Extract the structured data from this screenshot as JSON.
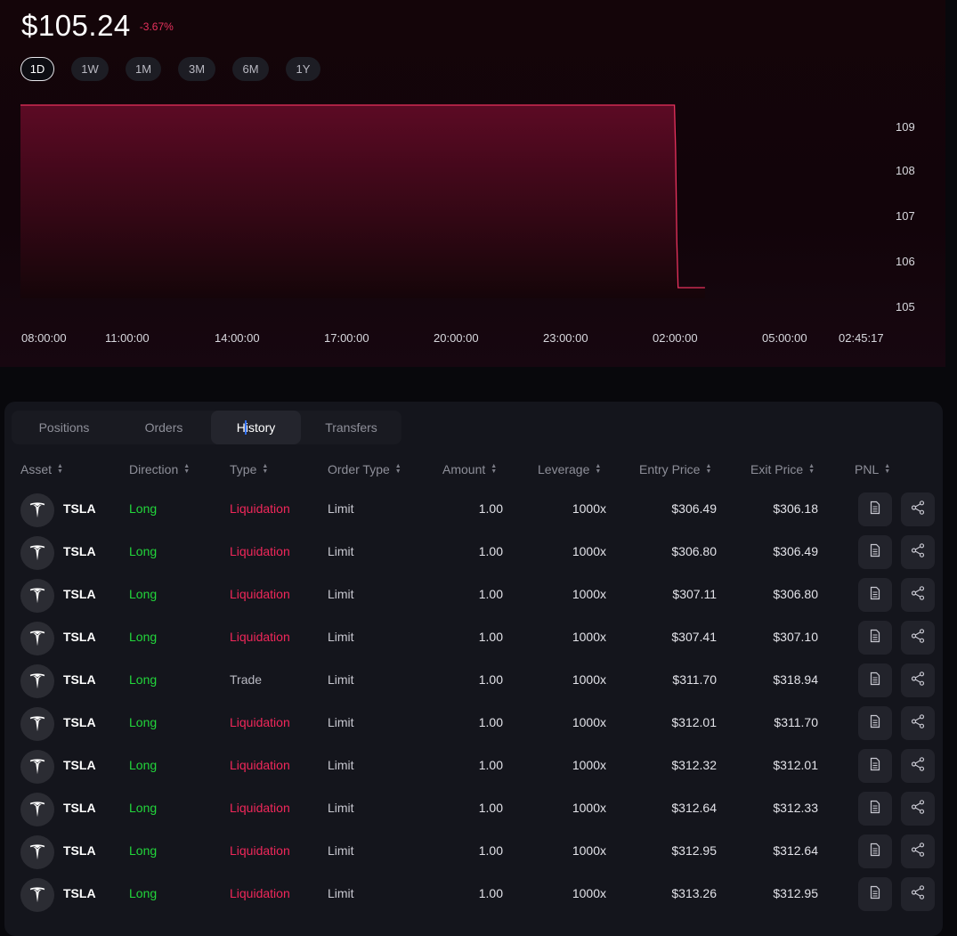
{
  "header": {
    "price": "$105.24",
    "change": "-3.67%"
  },
  "ranges": [
    {
      "label": "1D",
      "active": true
    },
    {
      "label": "1W",
      "active": false
    },
    {
      "label": "1M",
      "active": false
    },
    {
      "label": "3M",
      "active": false
    },
    {
      "label": "6M",
      "active": false
    },
    {
      "label": "1Y",
      "active": false
    }
  ],
  "chart_data": {
    "type": "area",
    "x_ticks": [
      "08:00:00",
      "11:00:00",
      "14:00:00",
      "17:00:00",
      "20:00:00",
      "23:00:00",
      "02:00:00",
      "05:00:00",
      "02:45:17"
    ],
    "y_ticks": [
      109,
      108,
      107,
      106,
      105
    ],
    "ylim": [
      104.75,
      109.35
    ],
    "series": [
      {
        "x": [
          "08:00:00",
          "01:55:00",
          "01:57:00",
          "01:59:00",
          "02:01:00",
          "02:02:00",
          "02:45:17"
        ],
        "values": [
          109.24,
          109.24,
          108.24,
          106.24,
          105.24,
          105.24,
          105.24
        ]
      }
    ],
    "line_color": "#e8325d",
    "fill_top": "#5c0a24",
    "grid": false
  },
  "tabs": [
    {
      "label": "Positions",
      "active": false
    },
    {
      "label": "Orders",
      "active": false
    },
    {
      "label": "History",
      "active": true
    },
    {
      "label": "Transfers",
      "active": false
    }
  ],
  "columns": [
    "Asset",
    "Direction",
    "Type",
    "Order Type",
    "Amount",
    "Leverage",
    "Entry Price",
    "Exit Price",
    "PNL"
  ],
  "rows": [
    {
      "asset": "TSLA",
      "direction": "Long",
      "type": "Liquidation",
      "order_type": "Limit",
      "amount": "1.00",
      "leverage": "1000x",
      "entry": "$306.49",
      "exit": "$306.18"
    },
    {
      "asset": "TSLA",
      "direction": "Long",
      "type": "Liquidation",
      "order_type": "Limit",
      "amount": "1.00",
      "leverage": "1000x",
      "entry": "$306.80",
      "exit": "$306.49"
    },
    {
      "asset": "TSLA",
      "direction": "Long",
      "type": "Liquidation",
      "order_type": "Limit",
      "amount": "1.00",
      "leverage": "1000x",
      "entry": "$307.11",
      "exit": "$306.80"
    },
    {
      "asset": "TSLA",
      "direction": "Long",
      "type": "Liquidation",
      "order_type": "Limit",
      "amount": "1.00",
      "leverage": "1000x",
      "entry": "$307.41",
      "exit": "$307.10"
    },
    {
      "asset": "TSLA",
      "direction": "Long",
      "type": "Trade",
      "order_type": "Limit",
      "amount": "1.00",
      "leverage": "1000x",
      "entry": "$311.70",
      "exit": "$318.94"
    },
    {
      "asset": "TSLA",
      "direction": "Long",
      "type": "Liquidation",
      "order_type": "Limit",
      "amount": "1.00",
      "leverage": "1000x",
      "entry": "$312.01",
      "exit": "$311.70"
    },
    {
      "asset": "TSLA",
      "direction": "Long",
      "type": "Liquidation",
      "order_type": "Limit",
      "amount": "1.00",
      "leverage": "1000x",
      "entry": "$312.32",
      "exit": "$312.01"
    },
    {
      "asset": "TSLA",
      "direction": "Long",
      "type": "Liquidation",
      "order_type": "Limit",
      "amount": "1.00",
      "leverage": "1000x",
      "entry": "$312.64",
      "exit": "$312.33"
    },
    {
      "asset": "TSLA",
      "direction": "Long",
      "type": "Liquidation",
      "order_type": "Limit",
      "amount": "1.00",
      "leverage": "1000x",
      "entry": "$312.95",
      "exit": "$312.64"
    },
    {
      "asset": "TSLA",
      "direction": "Long",
      "type": "Liquidation",
      "order_type": "Limit",
      "amount": "1.00",
      "leverage": "1000x",
      "entry": "$313.26",
      "exit": "$312.95"
    }
  ],
  "icons": {
    "asset_logo": "tesla-logo-icon",
    "details": "document-icon",
    "share": "share-icon"
  }
}
